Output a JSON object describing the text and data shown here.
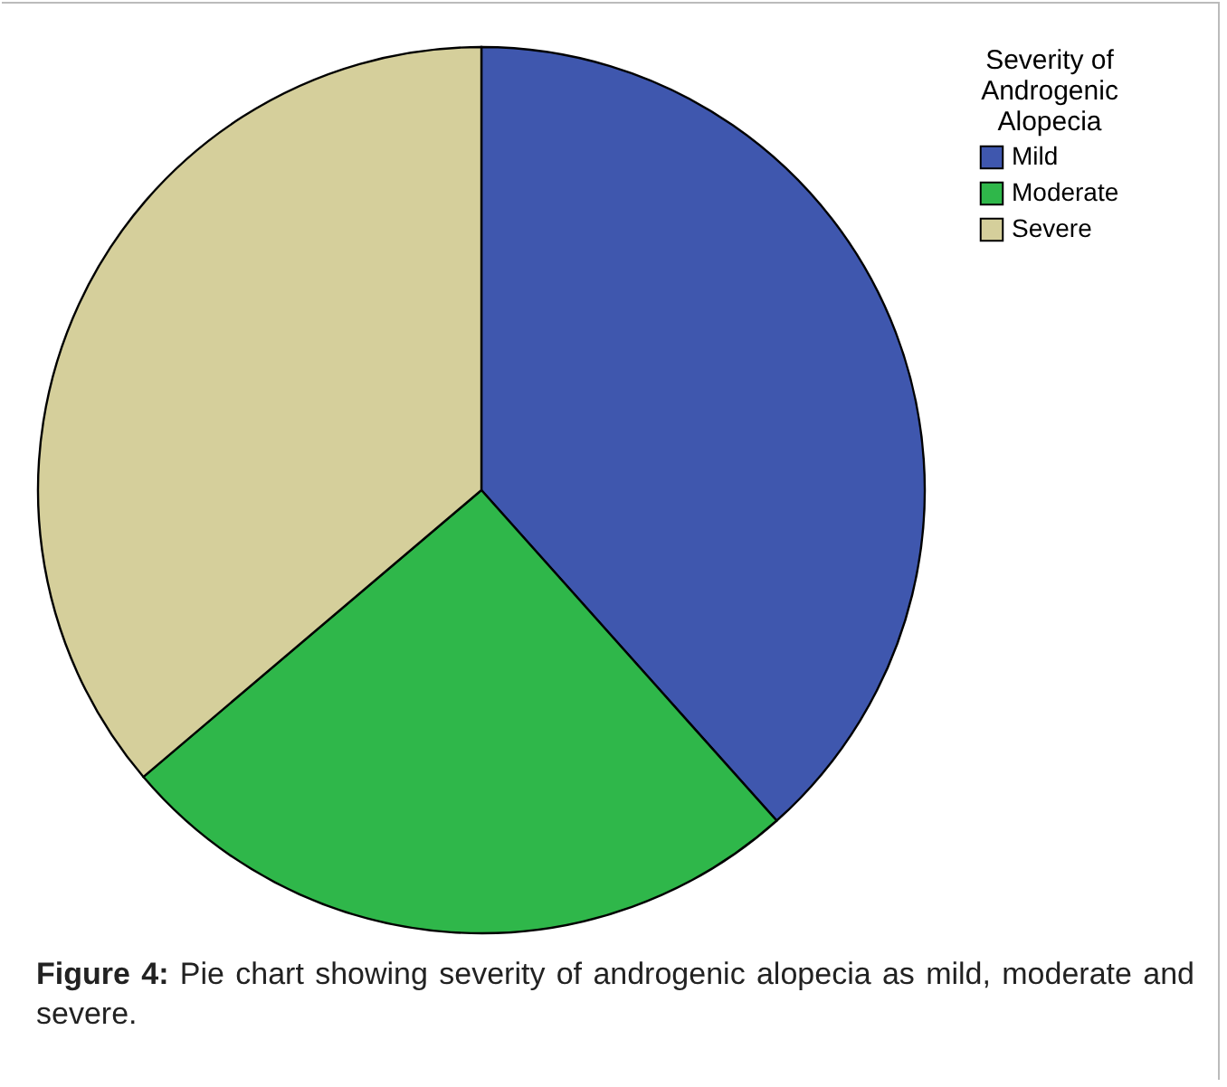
{
  "chart_data": {
    "type": "pie",
    "legend_title": "Severity of Androgenic Alopecia",
    "categories": [
      "Mild",
      "Moderate",
      "Severe"
    ],
    "values": [
      38.4,
      25.4,
      36.2
    ],
    "colors": [
      "#3f57ae",
      "#2fb74a",
      "#d5cf9b"
    ],
    "legend": "right",
    "annotations": [
      "Figure 4: Pie chart showing severity of androgenic alopecia as mild, moderate and severe."
    ]
  }
}
